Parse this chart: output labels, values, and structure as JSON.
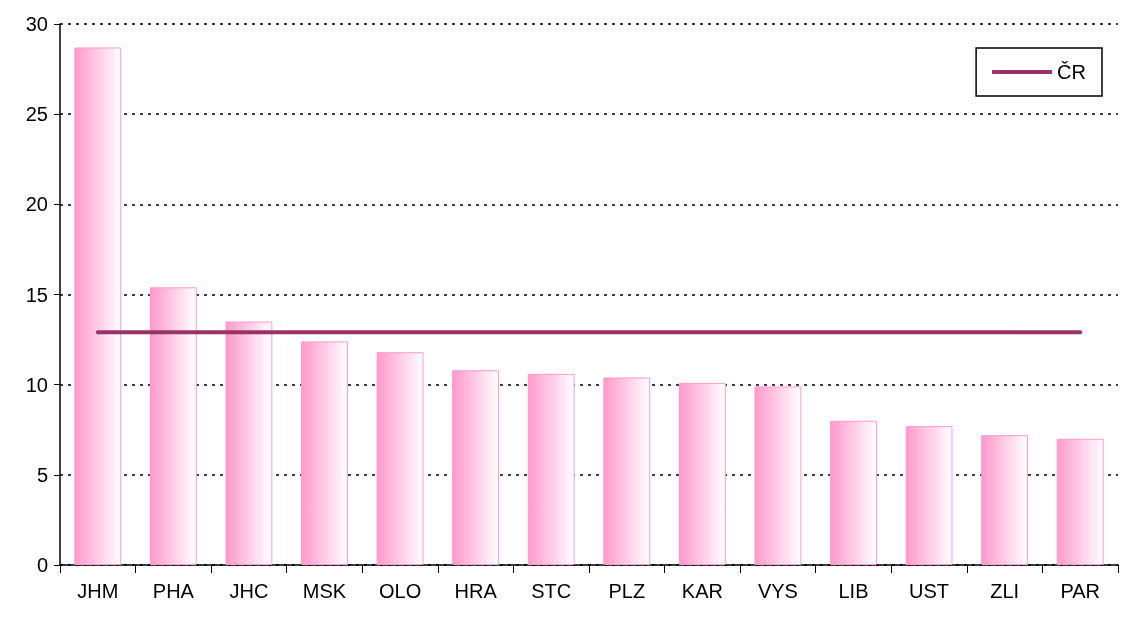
{
  "chart_data": {
    "type": "bar",
    "categories": [
      "JHM",
      "PHA",
      "JHC",
      "MSK",
      "OLO",
      "HRA",
      "STC",
      "PLZ",
      "KAR",
      "VYS",
      "LIB",
      "UST",
      "ZLI",
      "PAR"
    ],
    "series": [
      {
        "color": "#ff99cc",
        "values": [
          28.7,
          15.4,
          13.5,
          12.4,
          11.8,
          10.8,
          10.6,
          10.4,
          10.1,
          9.9,
          8.0,
          7.7,
          7.2,
          7.0
        ]
      },
      {
        "type": "line",
        "name": "ČR",
        "color": "#993366",
        "values": [
          12.9,
          12.9,
          12.9,
          12.9,
          12.9,
          12.9,
          12.9,
          12.9,
          12.9,
          12.9,
          12.9,
          12.9,
          12.9,
          12.9
        ]
      }
    ],
    "ylim": [
      0,
      30
    ],
    "yticks": [
      0,
      5,
      10,
      15,
      20,
      25,
      30
    ],
    "grid": "y",
    "legend": "top right",
    "marker": "none",
    "line_style": "solid"
  }
}
